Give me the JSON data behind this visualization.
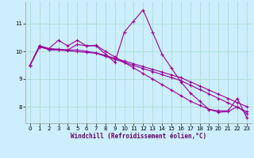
{
  "xlabel": "Windchill (Refroidissement éolien,°C)",
  "ylabel": "",
  "background_color": "#cceeff",
  "grid_color": "#aaddcc",
  "line_color": "#990099",
  "line_width": 0.8,
  "marker": "+",
  "markersize": 3,
  "markeredgewidth": 0.8,
  "ylim": [
    7.4,
    11.8
  ],
  "xlim": [
    -0.5,
    23.5
  ],
  "yticks": [
    8,
    9,
    10,
    11
  ],
  "xticks": [
    0,
    1,
    2,
    3,
    4,
    5,
    6,
    7,
    8,
    9,
    10,
    11,
    12,
    13,
    14,
    15,
    16,
    17,
    18,
    19,
    20,
    21,
    22,
    23
  ],
  "series": [
    [
      9.5,
      10.2,
      10.1,
      10.4,
      10.2,
      10.4,
      10.2,
      10.2,
      9.9,
      9.6,
      10.7,
      11.1,
      11.5,
      10.7,
      9.9,
      9.4,
      8.9,
      8.5,
      8.2,
      7.9,
      7.85,
      7.85,
      8.3,
      7.6
    ],
    [
      9.5,
      10.2,
      10.05,
      10.05,
      10.05,
      10.05,
      10.0,
      9.95,
      9.85,
      9.75,
      9.65,
      9.55,
      9.45,
      9.35,
      9.25,
      9.15,
      9.05,
      8.9,
      8.75,
      8.6,
      8.45,
      8.3,
      8.15,
      8.0
    ],
    [
      9.5,
      10.15,
      10.08,
      10.05,
      10.02,
      9.99,
      9.96,
      9.93,
      9.82,
      9.71,
      9.6,
      9.49,
      9.38,
      9.27,
      9.16,
      9.05,
      8.94,
      8.78,
      8.62,
      8.46,
      8.3,
      8.14,
      7.98,
      7.82
    ],
    [
      9.5,
      10.2,
      10.1,
      10.08,
      10.05,
      10.25,
      10.2,
      10.22,
      10.0,
      9.8,
      9.6,
      9.4,
      9.2,
      9.0,
      8.8,
      8.6,
      8.4,
      8.2,
      8.05,
      7.9,
      7.8,
      7.82,
      8.0,
      7.75
    ]
  ]
}
